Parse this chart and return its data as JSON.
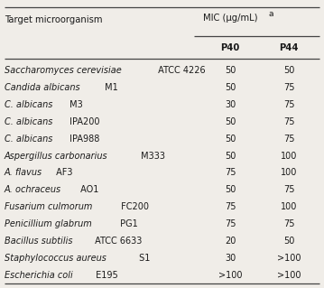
{
  "rows": [
    {
      "italic": "Saccharomyces cerevisiae",
      "normal": " ATCC 4226",
      "p40": "50",
      "p44": "50"
    },
    {
      "italic": "Candida albicans",
      "normal": " M1",
      "p40": "50",
      "p44": "75"
    },
    {
      "italic": "C. albicans",
      "normal": " M3",
      "p40": "30",
      "p44": "75"
    },
    {
      "italic": "C. albicans",
      "normal": " IPA200",
      "p40": "50",
      "p44": "75"
    },
    {
      "italic": "C. albicans",
      "normal": " IPA988",
      "p40": "50",
      "p44": "75"
    },
    {
      "italic": "Aspergillus carbonarius",
      "normal": " M333",
      "p40": "50",
      "p44": "100"
    },
    {
      "italic": "A. flavus",
      "normal": " AF3",
      "p40": "75",
      "p44": "100"
    },
    {
      "italic": "A. ochraceus",
      "normal": " AO1",
      "p40": "50",
      "p44": "75"
    },
    {
      "italic": "Fusarium culmorum",
      "normal": " FC200",
      "p40": "75",
      "p44": "100"
    },
    {
      "italic": "Penicillium glabrum",
      "normal": " PG1",
      "p40": "75",
      "p44": "75"
    },
    {
      "italic": "Bacillus subtilis",
      "normal": " ATCC 6633",
      "p40": "20",
      "p44": "50"
    },
    {
      "italic": "Staphylococcus aureus",
      "normal": " S1",
      "p40": "30",
      "p44": ">100"
    },
    {
      "italic": "Escherichia coli",
      "normal": " E195",
      "p40": ">100",
      "p44": ">100"
    }
  ],
  "header_organism": "Target microorganism",
  "header_mic": "MIC (μg/mL)",
  "header_sup": "a",
  "col_p40": "P40",
  "col_p44": "P44",
  "bg_color": "#f0ede8",
  "text_color": "#1a1a1a",
  "line_color": "#444444",
  "fs": 7.0,
  "hfs": 7.2
}
